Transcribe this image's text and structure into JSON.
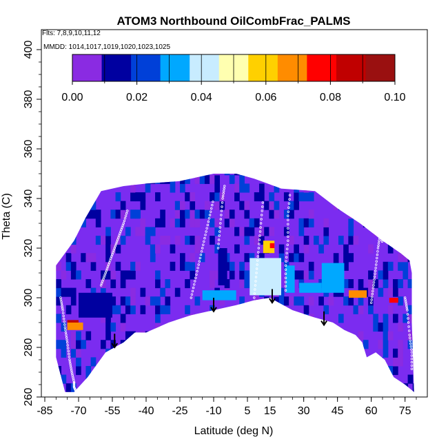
{
  "chart_data": {
    "type": "heatmap",
    "title": "ATOM3 Northbound OilCombFrac_PALMS",
    "flights_label": "Flts: 7,8,9,10,11,12",
    "mmdd_label": "MMDD: 1014,1017,1019,1020,1023,1025",
    "xlabel": "Latitude (deg N)",
    "ylabel": "Theta (C)",
    "xlim": [
      -85,
      85
    ],
    "ylim": [
      260,
      405
    ],
    "x_ticks": [
      -85,
      -70,
      -55,
      -40,
      -25,
      -10,
      5,
      15,
      30,
      45,
      60,
      75
    ],
    "x_tick_labels": [
      "-85",
      "-70",
      "-55",
      "-40",
      "-25",
      "-10",
      "5",
      "15",
      "30",
      "45",
      "60",
      "75"
    ],
    "y_ticks": [
      260,
      280,
      300,
      320,
      340,
      360,
      380,
      400
    ],
    "y_tick_labels": [
      "260",
      "280",
      "300",
      "320",
      "340",
      "360",
      "380",
      "400"
    ],
    "colorbar": {
      "range": [
        0,
        0.1
      ],
      "tick_values": [
        0,
        0.02,
        0.04,
        0.06,
        0.08,
        0.1
      ],
      "tick_labels": [
        "0.00",
        "0.02",
        "0.04",
        "0.06",
        "0.08",
        "0.10"
      ],
      "colors": [
        "#8a2be2",
        "#0000a0",
        "#0040d8",
        "#00a8ff",
        "#c8ecff",
        "#ffffb0",
        "#ffd000",
        "#ff8c00",
        "#ff0000",
        "#c00000",
        "#9a1010"
      ]
    },
    "background_value": 0.003,
    "background_color": "#7b2cf0",
    "upper_boundary": [
      [
        -80,
        313
      ],
      [
        -76,
        318
      ],
      [
        -72,
        323
      ],
      [
        -67,
        332
      ],
      [
        -60,
        343
      ],
      [
        -50,
        345
      ],
      [
        -40,
        346
      ],
      [
        -25,
        347
      ],
      [
        -10,
        350
      ],
      [
        0,
        350
      ],
      [
        8,
        348
      ],
      [
        20,
        344
      ],
      [
        35,
        343
      ],
      [
        45,
        336
      ],
      [
        55,
        330
      ],
      [
        65,
        323
      ],
      [
        73,
        318
      ],
      [
        77,
        315
      ],
      [
        78,
        310
      ],
      [
        78,
        290
      ],
      [
        79,
        262
      ]
    ],
    "lower_boundary": [
      [
        -80,
        276
      ],
      [
        -76,
        262
      ],
      [
        -72,
        262
      ],
      [
        -66,
        268
      ],
      [
        -58,
        278
      ],
      [
        -50,
        282
      ],
      [
        -45,
        286
      ],
      [
        -40,
        286
      ],
      [
        -30,
        290
      ],
      [
        -20,
        293
      ],
      [
        -10,
        295
      ],
      [
        0,
        297
      ],
      [
        8,
        299
      ],
      [
        15,
        300
      ],
      [
        25,
        295
      ],
      [
        35,
        292
      ],
      [
        43,
        290
      ],
      [
        48,
        287
      ],
      [
        53,
        285
      ],
      [
        56,
        282
      ],
      [
        58,
        276
      ],
      [
        62,
        278
      ],
      [
        66,
        275
      ],
      [
        70,
        268
      ],
      [
        75,
        265
      ],
      [
        79,
        262
      ]
    ],
    "patches": [
      {
        "lat": [
          -75,
          -68
        ],
        "theta": [
          287,
          290
        ],
        "value": 0.072
      },
      {
        "lat": [
          -75,
          -70
        ],
        "theta": [
          290,
          291
        ],
        "value": 0.09
      },
      {
        "lat": [
          6,
          20
        ],
        "theta": [
          301,
          316
        ],
        "value": 0.038
      },
      {
        "lat": [
          12,
          17
        ],
        "theta": [
          318,
          323
        ],
        "value": 0.06
      },
      {
        "lat": [
          15,
          17
        ],
        "theta": [
          320,
          322
        ],
        "value": 0.08
      },
      {
        "lat": [
          22,
          26
        ],
        "theta": [
          302,
          313
        ],
        "value": 0.032
      },
      {
        "lat": [
          28,
          38
        ],
        "theta": [
          302,
          306
        ],
        "value": 0.035
      },
      {
        "lat": [
          38,
          48
        ],
        "theta": [
          302,
          314
        ],
        "value": 0.03
      },
      {
        "lat": [
          50,
          58
        ],
        "theta": [
          300,
          303
        ],
        "value": 0.07
      },
      {
        "lat": [
          68,
          72
        ],
        "theta": [
          298,
          300
        ],
        "value": 0.075
      },
      {
        "lat": [
          -15,
          0
        ],
        "theta": [
          299,
          303
        ],
        "value": 0.03
      },
      {
        "lat": [
          -8,
          -4
        ],
        "theta": [
          305,
          320
        ],
        "value": 0.015
      },
      {
        "lat": [
          -70,
          -55
        ],
        "theta": [
          292,
          302
        ],
        "value": 0.015
      }
    ],
    "flight_tracks": [
      {
        "lat": [
          -78,
          -77,
          -76,
          -75,
          -74,
          -73,
          -72,
          -72,
          -71
        ],
        "theta": [
          300,
          295,
          288,
          282,
          275,
          270,
          266,
          264,
          262
        ]
      },
      {
        "lat": [
          -60,
          -58,
          -56,
          -54,
          -52,
          -50,
          -48
        ],
        "theta": [
          305,
          310,
          315,
          320,
          325,
          330,
          336
        ]
      },
      {
        "lat": [
          -20,
          -18,
          -16,
          -14,
          -12,
          -10
        ],
        "theta": [
          300,
          308,
          316,
          324,
          332,
          340
        ]
      },
      {
        "lat": [
          -8,
          -7,
          -6,
          -5
        ],
        "theta": [
          320,
          330,
          340,
          346
        ]
      },
      {
        "lat": [
          8,
          9,
          10,
          11,
          12
        ],
        "theta": [
          300,
          310,
          320,
          330,
          340
        ]
      },
      {
        "lat": [
          22,
          22,
          23,
          23,
          24
        ],
        "theta": [
          303,
          313,
          323,
          333,
          343
        ]
      },
      {
        "lat": [
          60,
          61,
          62,
          63,
          64,
          65
        ],
        "theta": [
          298,
          305,
          312,
          320,
          326,
          322
        ]
      },
      {
        "lat": [
          75,
          76,
          77,
          78,
          78
        ],
        "theta": [
          300,
          295,
          285,
          278,
          270
        ]
      }
    ],
    "arrows": [
      {
        "lat": -54,
        "theta_top": 285.5,
        "theta_bottom": 280
      },
      {
        "lat": -10,
        "theta_top": 300,
        "theta_bottom": 294.5
      },
      {
        "lat": 16,
        "theta_top": 303.5,
        "theta_bottom": 298
      },
      {
        "lat": 39,
        "theta_top": 294.5,
        "theta_bottom": 289
      }
    ]
  }
}
